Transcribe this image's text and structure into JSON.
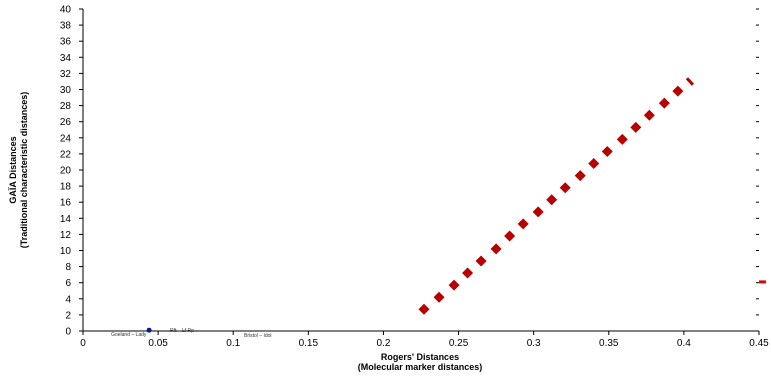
{
  "chart_data": {
    "type": "scatter",
    "title": "",
    "xlabel": [
      "Rogers' Distances",
      "(Molecular marker distances)"
    ],
    "ylabel": [
      "GAÏA Distances",
      "(Traditional characteristic distances)"
    ],
    "xlim": [
      0,
      0.45
    ],
    "ylim": [
      0,
      40
    ],
    "x_ticks": [
      0,
      0.05,
      0.1,
      0.15,
      0.2,
      0.25,
      0.3,
      0.35,
      0.4,
      0.45
    ],
    "x_tick_labels": [
      "0",
      "0.05",
      "0.1",
      "0.15",
      "0.2",
      "0.25",
      "0.3",
      "0.35",
      "0.4",
      "0.45"
    ],
    "y_ticks": [
      0,
      2,
      4,
      6,
      8,
      10,
      12,
      14,
      16,
      18,
      20,
      22,
      24,
      26,
      28,
      30,
      32,
      34,
      36,
      38,
      40
    ],
    "y_tick_labels": [
      "0",
      "2",
      "4",
      "6",
      "8",
      "10",
      "12",
      "14",
      "16",
      "18",
      "20",
      "22",
      "24",
      "26",
      "28",
      "30",
      "32",
      "34",
      "36",
      "38",
      "40"
    ],
    "grid": false,
    "series": [
      {
        "color": "#0a1a8c",
        "marker": "circle",
        "points": [
          [
            0.044,
            0.1
          ]
        ],
        "point_labels": [
          "Goeland – Lady"
        ]
      },
      {
        "color": "#b80000",
        "marker": "diamond",
        "points": [
          [
            0.227,
            2.7
          ],
          [
            0.237,
            4.2
          ],
          [
            0.247,
            5.7
          ],
          [
            0.256,
            7.2
          ],
          [
            0.265,
            8.7
          ],
          [
            0.275,
            10.2
          ],
          [
            0.284,
            11.8
          ],
          [
            0.293,
            13.3
          ],
          [
            0.303,
            14.8
          ],
          [
            0.312,
            16.3
          ],
          [
            0.321,
            17.8
          ],
          [
            0.331,
            19.3
          ],
          [
            0.34,
            20.8
          ],
          [
            0.349,
            22.3
          ],
          [
            0.359,
            23.8
          ],
          [
            0.368,
            25.3
          ],
          [
            0.377,
            26.8
          ],
          [
            0.387,
            28.3
          ],
          [
            0.396,
            29.8
          ]
        ]
      }
    ],
    "annotations": [
      "Bristol – Idol",
      "Rft – Lf Rp"
    ],
    "legend_marks": [
      {
        "color": "#e60000",
        "y": 6.1
      }
    ],
    "trend_end": {
      "x": [
        0.402,
        0.406
      ],
      "y": [
        31.4,
        30.6
      ],
      "color": "#b80000"
    }
  }
}
